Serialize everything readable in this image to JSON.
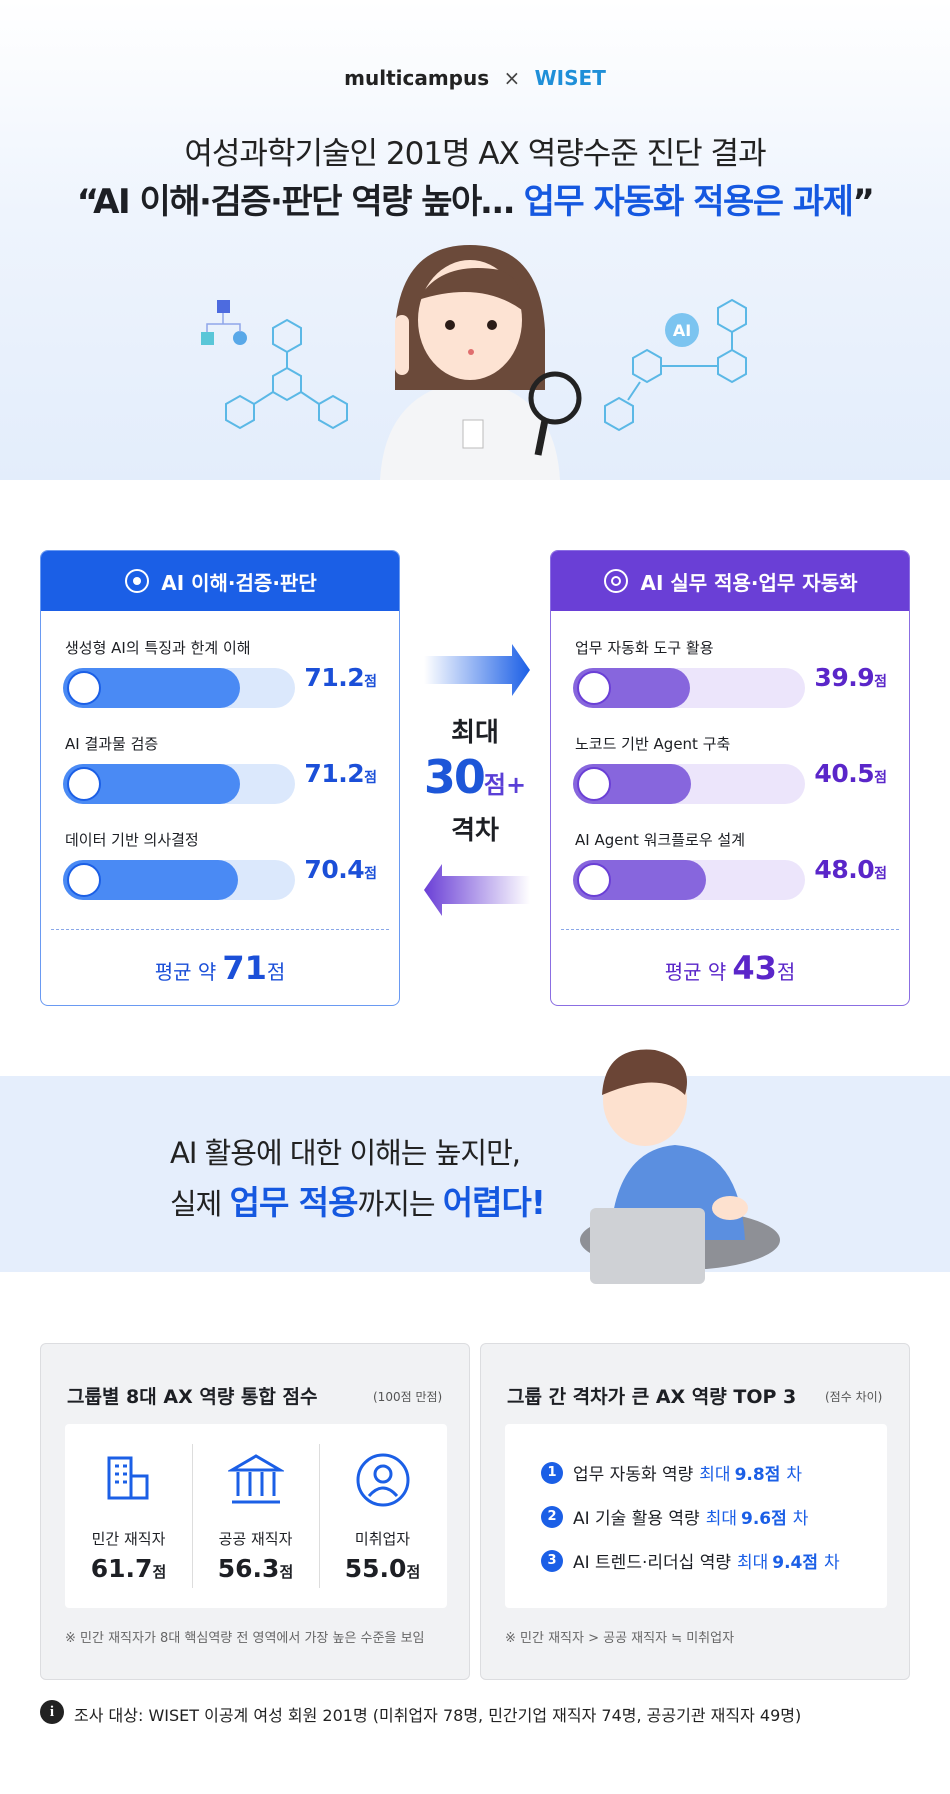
{
  "header": {
    "brand_left": "multicampus",
    "separator": "×",
    "brand_right": "WISET",
    "title_line1": "여성과학기술인 201명 AX 역량수준 진단 결과",
    "quote_open": "“",
    "headline_part1": "AI 이해·검증·판단 역량 높아…",
    "headline_part2": "업무 자동화 적용은 과제",
    "quote_close": "”",
    "icon_label": "AI"
  },
  "comparison": {
    "unit": "점",
    "xlim": [
      0,
      100
    ],
    "left": {
      "title": "AI 이해·검증·판단",
      "items": [
        {
          "label": "생성형 AI의 특징과 한계 이해",
          "value": 71.2,
          "value_label": "71.2"
        },
        {
          "label": "AI 결과물 검증",
          "value": 71.2,
          "value_label": "71.2"
        },
        {
          "label": "데이터 기반 의사결정",
          "value": 70.4,
          "value_label": "70.4"
        }
      ],
      "average_prefix": "평균 약",
      "average": 71
    },
    "right": {
      "title": "AI 실무 적용·업무 자동화",
      "items": [
        {
          "label": "업무 자동화 도구 활용",
          "value": 39.9,
          "value_label": "39.9"
        },
        {
          "label": "노코드 기반 Agent 구축",
          "value": 40.5,
          "value_label": "40.5"
        },
        {
          "label": "AI Agent 워크플로우 설계",
          "value": 48.0,
          "value_label": "48.0"
        }
      ],
      "average_prefix": "평균 약",
      "average": 43
    },
    "gap": {
      "line1": "최대",
      "value": 30,
      "suffix": "점+",
      "line2": "격차"
    }
  },
  "banner": {
    "line1": "AI 활용에 대한 이해는 높지만,",
    "line2_prefix": "실제",
    "line2_highlight1": "업무 적용",
    "line2_middle": "까지는",
    "line2_highlight2": "어렵다!"
  },
  "group_scores": {
    "title": "그룹별 8대 AX 역량 통합 점수",
    "note": "(100점 만점)",
    "unit": "점",
    "groups": [
      {
        "name": "민간 재직자",
        "value": 61.7,
        "value_label": "61.7"
      },
      {
        "name": "공공 재직자",
        "value": 56.3,
        "value_label": "56.3"
      },
      {
        "name": "미취업자",
        "value": 55.0,
        "value_label": "55.0"
      }
    ],
    "footnote": "※ 민간 재직자가 8대 핵심역량 전 영역에서 가장 높은 수준을 보임"
  },
  "top3": {
    "title": "그룹 간 격차가 큰 AX 역량 TOP 3",
    "note": "(점수 차이)",
    "prefix": "최대",
    "unit": "점",
    "suffix": "차",
    "items": [
      {
        "rank": 1,
        "name": "업무 자동화 역량",
        "value": 9.8
      },
      {
        "rank": 2,
        "name": "AI 기술 활용 역량",
        "value": 9.6
      },
      {
        "rank": 3,
        "name": "AI 트렌드·리더십 역량",
        "value": 9.4
      }
    ],
    "footnote": "※ 민간 재직자 > 공공 재직자 ≒ 미취업자"
  },
  "survey_note": "조사 대상: WISET 이공계 여성 회원 201명 (미취업자 78명, 민간기업 재직자 74명, 공공기관 재직자 49명)"
}
